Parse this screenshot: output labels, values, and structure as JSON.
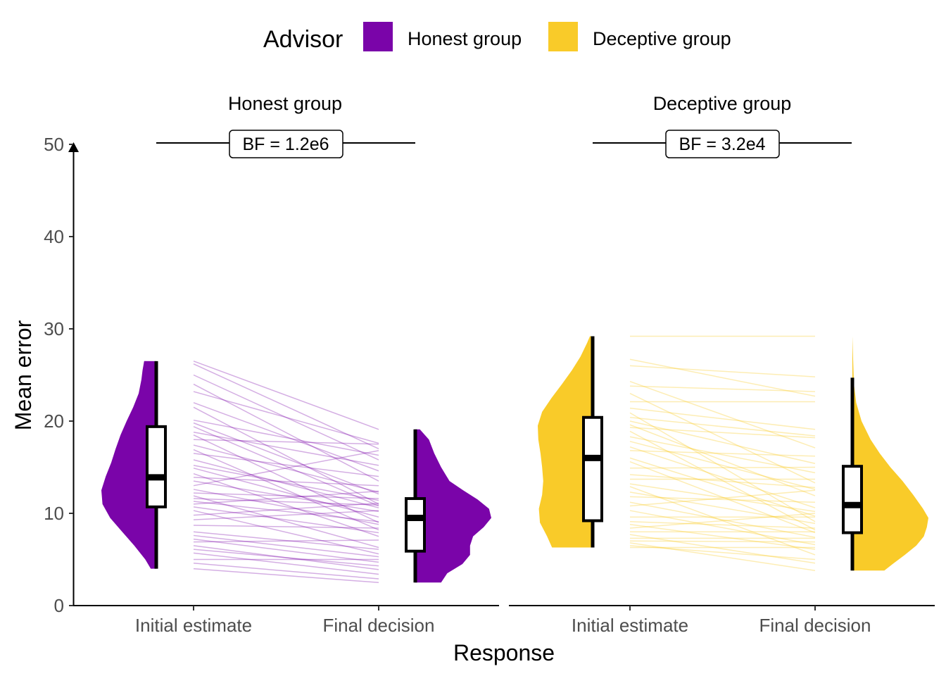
{
  "legend": {
    "title": "Advisor",
    "items": [
      {
        "label": "Honest group",
        "color": "#7a04a9"
      },
      {
        "label": "Deceptive group",
        "color": "#f9cb29"
      }
    ]
  },
  "chart_data": {
    "type": "raincloud",
    "ylabel": "Mean error",
    "xlabel": "Response",
    "ylim": [
      0,
      50
    ],
    "yticks": [
      0,
      10,
      20,
      30,
      40,
      50
    ],
    "categories": [
      "Initial estimate",
      "Final decision"
    ],
    "panels": [
      {
        "title": "Honest group",
        "color": "#7a04a9",
        "bf_label": "BF = 1.2e6",
        "initial_box": {
          "min": 4.0,
          "q1": 10.7,
          "median": 13.9,
          "q3": 19.4,
          "max": 26.5
        },
        "final_box": {
          "min": 2.5,
          "q1": 5.9,
          "median": 9.5,
          "q3": 11.6,
          "max": 19.1
        },
        "pairs": [
          [
            26.5,
            19.1
          ],
          [
            26.2,
            17.0
          ],
          [
            25.0,
            15.8
          ],
          [
            24.0,
            13.5
          ],
          [
            23.2,
            17.6
          ],
          [
            22.0,
            14.6
          ],
          [
            21.5,
            11.0
          ],
          [
            20.1,
            16.3
          ],
          [
            19.8,
            12.1
          ],
          [
            19.4,
            10.8
          ],
          [
            18.8,
            15.2
          ],
          [
            18.5,
            9.0
          ],
          [
            18.0,
            17.5
          ],
          [
            17.4,
            12.3
          ],
          [
            16.9,
            8.2
          ],
          [
            16.5,
            14.0
          ],
          [
            15.8,
            10.6
          ],
          [
            15.2,
            11.4
          ],
          [
            14.9,
            9.6
          ],
          [
            14.3,
            7.5
          ],
          [
            13.9,
            13.0
          ],
          [
            13.5,
            10.2
          ],
          [
            13.0,
            16.8
          ],
          [
            12.6,
            8.8
          ],
          [
            12.2,
            11.6
          ],
          [
            11.9,
            6.3
          ],
          [
            11.6,
            10.9
          ],
          [
            11.3,
            9.1
          ],
          [
            11.0,
            12.4
          ],
          [
            10.7,
            7.9
          ],
          [
            10.3,
            5.6
          ],
          [
            9.8,
            11.1
          ],
          [
            9.3,
            10.3
          ],
          [
            8.7,
            8.4
          ],
          [
            8.0,
            6.1
          ],
          [
            7.6,
            5.3
          ],
          [
            7.2,
            4.7
          ],
          [
            6.9,
            7.1
          ],
          [
            6.5,
            3.9
          ],
          [
            6.1,
            4.3
          ],
          [
            5.7,
            3.4
          ],
          [
            5.0,
            5.0
          ],
          [
            4.6,
            2.9
          ],
          [
            4.0,
            2.5
          ]
        ],
        "initial_density": [
          [
            4.0,
            0.1
          ],
          [
            5.0,
            0.2
          ],
          [
            6.5,
            0.4
          ],
          [
            8.0,
            0.62
          ],
          [
            9.5,
            0.84
          ],
          [
            11.0,
            0.98
          ],
          [
            12.5,
            1.0
          ],
          [
            14.0,
            0.92
          ],
          [
            15.5,
            0.82
          ],
          [
            17.0,
            0.74
          ],
          [
            18.5,
            0.65
          ],
          [
            20.0,
            0.54
          ],
          [
            21.5,
            0.42
          ],
          [
            23.0,
            0.32
          ],
          [
            24.5,
            0.27
          ],
          [
            25.5,
            0.25
          ],
          [
            26.5,
            0.22
          ]
        ],
        "final_density": [
          [
            2.5,
            0.34
          ],
          [
            3.5,
            0.42
          ],
          [
            4.5,
            0.62
          ],
          [
            5.5,
            0.72
          ],
          [
            6.5,
            0.72
          ],
          [
            7.5,
            0.76
          ],
          [
            8.5,
            0.9
          ],
          [
            9.5,
            1.0
          ],
          [
            10.5,
            0.97
          ],
          [
            11.5,
            0.82
          ],
          [
            12.5,
            0.63
          ],
          [
            13.5,
            0.45
          ],
          [
            15.0,
            0.34
          ],
          [
            16.5,
            0.25
          ],
          [
            18.0,
            0.18
          ],
          [
            19.1,
            0.06
          ]
        ]
      },
      {
        "title": "Deceptive group",
        "color": "#f9cb29",
        "bf_label": "BF = 3.2e4",
        "initial_box": {
          "min": 6.3,
          "q1": 9.2,
          "median": 16.0,
          "q3": 20.4,
          "max": 29.2
        },
        "final_box": {
          "min": 3.8,
          "q1": 7.9,
          "median": 10.9,
          "q3": 15.1,
          "max": 24.7
        },
        "pairs": [
          [
            29.2,
            29.2
          ],
          [
            26.7,
            22.7
          ],
          [
            26.0,
            24.8
          ],
          [
            24.3,
            17.1
          ],
          [
            23.8,
            23.2
          ],
          [
            23.0,
            13.3
          ],
          [
            22.1,
            22.1
          ],
          [
            21.4,
            19.1
          ],
          [
            20.9,
            9.1
          ],
          [
            20.4,
            18.4
          ],
          [
            20.0,
            15.4
          ],
          [
            19.6,
            11.9
          ],
          [
            19.3,
            18.2
          ],
          [
            18.9,
            8.2
          ],
          [
            18.3,
            14.4
          ],
          [
            17.8,
            12.6
          ],
          [
            17.2,
            10.6
          ],
          [
            16.8,
            16.2
          ],
          [
            16.0,
            9.7
          ],
          [
            15.6,
            7.9
          ],
          [
            14.9,
            15.0
          ],
          [
            14.2,
            12.8
          ],
          [
            13.7,
            13.7
          ],
          [
            13.2,
            10.2
          ],
          [
            12.9,
            5.5
          ],
          [
            12.3,
            8.9
          ],
          [
            11.8,
            11.2
          ],
          [
            11.2,
            7.4
          ],
          [
            10.8,
            12.5
          ],
          [
            10.3,
            6.6
          ],
          [
            9.6,
            9.6
          ],
          [
            9.1,
            8.4
          ],
          [
            8.8,
            6.1
          ],
          [
            8.4,
            10.0
          ],
          [
            8.0,
            8.0
          ],
          [
            7.7,
            4.6
          ],
          [
            7.3,
            7.3
          ],
          [
            7.0,
            6.9
          ],
          [
            6.8,
            3.8
          ],
          [
            6.5,
            5.0
          ],
          [
            6.3,
            6.3
          ]
        ],
        "initial_density": [
          [
            6.3,
            0.74
          ],
          [
            7.5,
            0.83
          ],
          [
            9.0,
            0.96
          ],
          [
            10.5,
            0.98
          ],
          [
            12.0,
            0.92
          ],
          [
            13.5,
            0.9
          ],
          [
            15.0,
            0.92
          ],
          [
            16.5,
            0.95
          ],
          [
            18.0,
            0.99
          ],
          [
            19.5,
            1.0
          ],
          [
            21.0,
            0.92
          ],
          [
            22.5,
            0.75
          ],
          [
            24.0,
            0.56
          ],
          [
            25.5,
            0.38
          ],
          [
            27.0,
            0.22
          ],
          [
            28.5,
            0.1
          ],
          [
            29.2,
            0.05
          ]
        ],
        "final_density": [
          [
            3.8,
            0.42
          ],
          [
            4.5,
            0.53
          ],
          [
            5.5,
            0.69
          ],
          [
            6.5,
            0.84
          ],
          [
            7.5,
            0.94
          ],
          [
            8.5,
            0.98
          ],
          [
            9.5,
            1.0
          ],
          [
            10.5,
            0.93
          ],
          [
            12.0,
            0.8
          ],
          [
            13.5,
            0.66
          ],
          [
            15.0,
            0.5
          ],
          [
            16.5,
            0.36
          ],
          [
            18.0,
            0.24
          ],
          [
            20.0,
            0.12
          ],
          [
            22.0,
            0.05
          ],
          [
            24.0,
            0.02
          ],
          [
            26.5,
            0.01
          ],
          [
            29.2,
            0.0
          ]
        ]
      }
    ]
  }
}
